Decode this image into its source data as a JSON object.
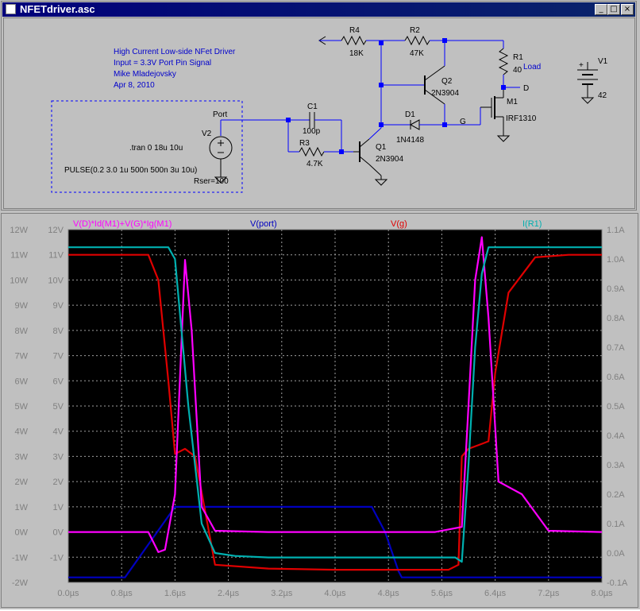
{
  "window": {
    "title": "NFETdriver.asc",
    "min_glyph": "_",
    "max_glyph": "□",
    "close_glyph": "×"
  },
  "schematic": {
    "notes": [
      "High Current Low-side NFet Driver",
      "Input = 3.3V Port Pin Signal",
      "Mike Mladejovsky",
      "Apr 8, 2010"
    ],
    "spice": [
      ".tran 0 18u 10u",
      "PULSE(0.2 3.0 1u 500n 500n 3u 10u)"
    ],
    "labels": {
      "port": "Port",
      "v2": "V2",
      "rser": "Rser=100",
      "c1": "C1",
      "c1v": "100p",
      "r3": "R3",
      "r3v": "4.7K",
      "q1": "Q1",
      "q1v": "2N3904",
      "d1": "D1",
      "d1v": "1N4148",
      "g": "G",
      "q2": "Q2",
      "q2v": "2N3904",
      "r4": "R4",
      "r4v": "18K",
      "r2": "R2",
      "r2v": "47K",
      "r1": "R1",
      "r1v": "40",
      "load": "Load",
      "d": "D",
      "m1": "M1",
      "m1v": "IRF1310",
      "v1": "V1",
      "v1v": "42",
      "plus": "+"
    },
    "colors": {
      "note": "#0000cc",
      "wire": "#0000ff",
      "comp": "#000000"
    }
  },
  "waveform": {
    "legend": {
      "power": "V(D)*Id(M1)+V(G)*Ig(M1)",
      "port": "V(port)",
      "g": "V(g)",
      "r1": "I(R1)"
    },
    "left_w_ticks": [
      "12W",
      "11W",
      "10W",
      "9W",
      "8W",
      "7W",
      "6W",
      "5W",
      "4W",
      "3W",
      "2W",
      "1W",
      "0W",
      "-1W",
      "-2W"
    ],
    "left_v_ticks": [
      "12V",
      "11V",
      "10V",
      "9V",
      "8V",
      "7V",
      "6V",
      "5V",
      "4V",
      "3V",
      "2V",
      "1V",
      "0V",
      "-1V"
    ],
    "right_a_ticks": [
      "1.1A",
      "1.0A",
      "0.9A",
      "0.8A",
      "0.7A",
      "0.6A",
      "0.5A",
      "0.4A",
      "0.3A",
      "0.2A",
      "0.1A",
      "0.0A",
      "-0.1A"
    ],
    "x_ticks": [
      "0.0µs",
      "0.8µs",
      "1.6µs",
      "2.4µs",
      "3.2µs",
      "4.0µs",
      "4.8µs",
      "5.6µs",
      "6.4µs",
      "7.2µs",
      "8.0µs"
    ],
    "colors": {
      "power": "#ff00ff",
      "port": "#0000c0",
      "g": "#e00000",
      "r1": "#00b0b0",
      "axis": "#808080",
      "grid": "#a0a0a0"
    }
  },
  "chart_data": {
    "type": "line",
    "x_unit": "µs",
    "xlim": [
      0,
      8
    ],
    "series": [
      {
        "name": "V(port)",
        "axis": "V",
        "x": [
          0,
          0.85,
          1.6,
          4.55,
          4.75,
          4.95,
          5.0,
          8.0
        ],
        "y": [
          -1.8,
          -1.8,
          1,
          1,
          0,
          -1.55,
          -1.8,
          -1.8
        ]
      },
      {
        "name": "V(g)",
        "axis": "V",
        "x": [
          0,
          1.2,
          1.35,
          1.5,
          1.6,
          1.75,
          1.9,
          2.2,
          3.0,
          4.0,
          5.0,
          5.7,
          5.85,
          5.9,
          6.0,
          6.2,
          6.3,
          6.4,
          6.6,
          7.0,
          7.5,
          8.0
        ],
        "y": [
          11,
          11,
          10,
          6,
          3.1,
          3.3,
          3.0,
          -1.3,
          -1.45,
          -1.5,
          -1.5,
          -1.5,
          -1.3,
          3.0,
          3.3,
          3.5,
          3.6,
          6.3,
          9.5,
          10.9,
          11,
          11
        ]
      },
      {
        "name": "V(D)*Id(M1)+V(G)*Ig(M1)",
        "axis": "W",
        "x": [
          0,
          1.2,
          1.35,
          1.45,
          1.6,
          1.75,
          1.85,
          2.0,
          2.2,
          3.0,
          5.5,
          5.9,
          6.0,
          6.1,
          6.2,
          6.3,
          6.45,
          6.8,
          7.2,
          8.0
        ],
        "y": [
          0,
          0,
          -0.8,
          -0.7,
          1.5,
          10.8,
          8.0,
          1.0,
          0.05,
          0,
          0,
          0.2,
          5.0,
          10.0,
          11.7,
          8.5,
          2.0,
          1.5,
          0.05,
          0
        ]
      },
      {
        "name": "I(R1)",
        "axis": "A",
        "x": [
          0,
          1.5,
          1.6,
          1.8,
          2.0,
          2.2,
          2.5,
          3.0,
          5.8,
          5.9,
          6.0,
          6.1,
          6.2,
          6.3,
          6.4,
          8.0
        ],
        "y": [
          1.04,
          1.04,
          1.0,
          0.5,
          0.1,
          0.0,
          -0.01,
          -0.015,
          -0.015,
          -0.03,
          0.3,
          0.7,
          0.95,
          1.04,
          1.04,
          1.04
        ]
      }
    ]
  }
}
